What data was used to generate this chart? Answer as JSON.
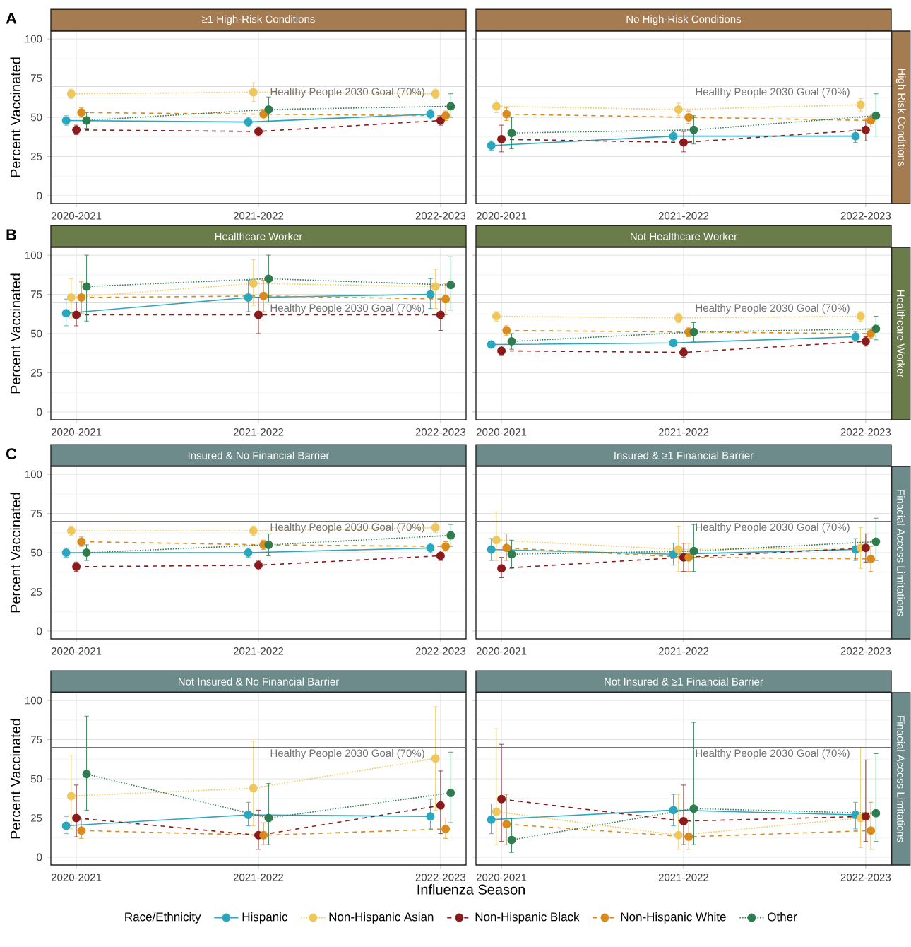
{
  "chart_data": [
    {
      "type": "line",
      "title": "≥1 High-Risk Conditions",
      "ylabel": "Percent Vaccinated",
      "categories": [
        "2020-2021",
        "2021-2022",
        "2022-2023"
      ],
      "ylim": [
        -5,
        105
      ],
      "yticks": [
        0,
        25,
        50,
        75,
        100
      ],
      "grid": true,
      "marker": "circle",
      "annotations": [
        "A"
      ],
      "ref_lines": [
        {
          "axis": "y",
          "value": 70,
          "label": "Healthy People 2030 Goal (70%)"
        }
      ],
      "series": [
        {
          "color": "#2aa7bf",
          "line_style": "solid",
          "values": [
            48,
            47,
            52
          ],
          "errors": [
            3,
            3,
            3
          ]
        },
        {
          "color": "#f0c75a",
          "line_style": "dotted",
          "values": [
            65,
            66,
            65
          ],
          "errors": [
            3,
            [
              60,
              72
            ],
            3
          ]
        },
        {
          "color": "#8b1a1a",
          "line_style": "dashed",
          "values": [
            42,
            41,
            48
          ],
          "errors": [
            3,
            3,
            3
          ]
        },
        {
          "color": "#d98b1e",
          "line_style": "dashed",
          "values": [
            53,
            52,
            51
          ],
          "errors": [
            3,
            3,
            3
          ]
        },
        {
          "color": "#2e7d4f",
          "line_style": "dotted",
          "values": [
            48,
            55,
            57
          ],
          "errors": [
            [
              43,
              53
            ],
            [
              47,
              63
            ],
            [
              50,
              65
            ]
          ]
        }
      ]
    },
    {
      "type": "line",
      "title": "No High-Risk Conditions",
      "categories": [
        "2020-2021",
        "2021-2022",
        "2022-2023"
      ],
      "ylim": [
        -5,
        105
      ],
      "yticks": [
        0,
        25,
        50,
        75,
        100
      ],
      "tick_labels": "x",
      "grid": true,
      "marker": "circle",
      "annotations": [
        "High Risk Conditions"
      ],
      "ref_lines": [
        {
          "axis": "y",
          "value": 70,
          "label": "Healthy People 2030 Goal (70%)"
        }
      ],
      "series": [
        {
          "color": "#2aa7bf",
          "line_style": "solid",
          "values": [
            32,
            38,
            38
          ],
          "errors": [
            3,
            3,
            4
          ]
        },
        {
          "color": "#f0c75a",
          "line_style": "dotted",
          "values": [
            57,
            55,
            58
          ],
          "errors": [
            4,
            4,
            4
          ]
        },
        {
          "color": "#8b1a1a",
          "line_style": "dashed",
          "values": [
            36,
            34,
            42
          ],
          "errors": [
            [
              28,
              45
            ],
            [
              28,
              41
            ],
            [
              35,
              49
            ]
          ]
        },
        {
          "color": "#d98b1e",
          "line_style": "dashed",
          "values": [
            52,
            50,
            48
          ],
          "errors": [
            4,
            4,
            4
          ]
        },
        {
          "color": "#2e7d4f",
          "line_style": "dotted",
          "values": [
            40,
            42,
            51
          ],
          "errors": [
            [
              30,
              50
            ],
            [
              33,
              51
            ],
            [
              38,
              65
            ]
          ]
        }
      ]
    },
    {
      "type": "line",
      "title": "Healthcare Worker",
      "ylabel": "Percent Vaccinated",
      "categories": [
        "2020-2021",
        "2021-2022",
        "2022-2023"
      ],
      "ylim": [
        -5,
        105
      ],
      "yticks": [
        0,
        25,
        50,
        75,
        100
      ],
      "grid": true,
      "marker": "circle",
      "annotations": [
        "B"
      ],
      "ref_lines": [
        {
          "axis": "y",
          "value": 70,
          "label": "Healthy People 2030 Goal (70%)"
        }
      ],
      "series": [
        {
          "color": "#2aa7bf",
          "line_style": "solid",
          "values": [
            63,
            73,
            75
          ],
          "errors": [
            [
              55,
              72
            ],
            [
              64,
              84
            ],
            [
              66,
              85
            ]
          ]
        },
        {
          "color": "#f0c75a",
          "line_style": "dotted",
          "values": [
            73,
            82,
            80
          ],
          "errors": [
            [
              60,
              85
            ],
            [
              68,
              97
            ],
            [
              66,
              91
            ]
          ]
        },
        {
          "color": "#8b1a1a",
          "line_style": "dashed",
          "values": [
            62,
            62,
            62
          ],
          "errors": [
            [
              55,
              70
            ],
            [
              50,
              73
            ],
            [
              52,
              72
            ]
          ]
        },
        {
          "color": "#d98b1e",
          "line_style": "dashed",
          "values": [
            73,
            74,
            72
          ],
          "errors": [
            [
              63,
              83
            ],
            [
              64,
              84
            ],
            [
              62,
              82
            ]
          ]
        },
        {
          "color": "#2e7d4f",
          "line_style": "dotted",
          "values": [
            80,
            85,
            81
          ],
          "errors": [
            [
              58,
              100
            ],
            [
              70,
              100
            ],
            [
              65,
              99
            ]
          ]
        }
      ]
    },
    {
      "type": "line",
      "title": "Not Healthcare Worker",
      "categories": [
        "2020-2021",
        "2021-2022",
        "2022-2023"
      ],
      "ylim": [
        -5,
        105
      ],
      "yticks": [
        0,
        25,
        50,
        75,
        100
      ],
      "tick_labels": "x",
      "grid": true,
      "marker": "circle",
      "annotations": [
        "Healthcare Worker"
      ],
      "ref_lines": [
        {
          "axis": "y",
          "value": 70,
          "label": "Healthy People 2030 Goal (70%)"
        }
      ],
      "series": [
        {
          "color": "#2aa7bf",
          "line_style": "solid",
          "values": [
            43,
            44,
            48
          ],
          "errors": [
            2,
            2,
            3
          ]
        },
        {
          "color": "#f0c75a",
          "line_style": "dotted",
          "values": [
            61,
            60,
            61
          ],
          "errors": [
            3,
            3,
            3
          ]
        },
        {
          "color": "#8b1a1a",
          "line_style": "dashed",
          "values": [
            39,
            38,
            45
          ],
          "errors": [
            3,
            3,
            3
          ]
        },
        {
          "color": "#d98b1e",
          "line_style": "dashed",
          "values": [
            52,
            51,
            50
          ],
          "errors": [
            3,
            3,
            3
          ]
        },
        {
          "color": "#2e7d4f",
          "line_style": "dotted",
          "values": [
            45,
            51,
            53
          ],
          "errors": [
            [
              40,
              50
            ],
            [
              45,
              57
            ],
            [
              46,
              61
            ]
          ]
        }
      ]
    },
    {
      "type": "line",
      "title": "Insured & No Financial Barrier",
      "ylabel": "Percent Vaccinated",
      "categories": [
        "2020-2021",
        "2021-2022",
        "2022-2023"
      ],
      "ylim": [
        -5,
        105
      ],
      "yticks": [
        0,
        25,
        50,
        75,
        100
      ],
      "grid": true,
      "marker": "circle",
      "annotations": [
        "C"
      ],
      "ref_lines": [
        {
          "axis": "y",
          "value": 70,
          "label": "Healthy People 2030 Goal (70%)"
        }
      ],
      "series": [
        {
          "color": "#2aa7bf",
          "line_style": "solid",
          "values": [
            50,
            50,
            53
          ],
          "errors": [
            3,
            3,
            3
          ]
        },
        {
          "color": "#f0c75a",
          "line_style": "dotted",
          "values": [
            64,
            64,
            66
          ],
          "errors": [
            3,
            3,
            3
          ]
        },
        {
          "color": "#8b1a1a",
          "line_style": "dashed",
          "values": [
            41,
            42,
            48
          ],
          "errors": [
            3,
            3,
            3
          ]
        },
        {
          "color": "#d98b1e",
          "line_style": "dashed",
          "values": [
            57,
            55,
            54
          ],
          "errors": [
            3,
            3,
            3
          ]
        },
        {
          "color": "#2e7d4f",
          "line_style": "dotted",
          "values": [
            50,
            55,
            61
          ],
          "errors": [
            [
              45,
              55
            ],
            [
              48,
              62
            ],
            [
              54,
              68
            ]
          ]
        }
      ]
    },
    {
      "type": "line",
      "title": "Insured & ≥1 Financial Barrier",
      "categories": [
        "2020-2021",
        "2021-2022",
        "2022-2023"
      ],
      "ylim": [
        -5,
        105
      ],
      "yticks": [
        0,
        25,
        50,
        75,
        100
      ],
      "tick_labels": "x",
      "grid": true,
      "marker": "circle",
      "annotations": [
        "Finacial Access Limitations"
      ],
      "ref_lines": [
        {
          "axis": "y",
          "value": 70,
          "label": "Healthy People 2030 Goal (70%)"
        }
      ],
      "series": [
        {
          "color": "#2aa7bf",
          "line_style": "solid",
          "values": [
            52,
            49,
            52
          ],
          "errors": [
            [
              45,
              59
            ],
            [
              42,
              56
            ],
            [
              45,
              59
            ]
          ]
        },
        {
          "color": "#f0c75a",
          "line_style": "dotted",
          "values": [
            58,
            52,
            53
          ],
          "errors": [
            [
              45,
              76
            ],
            [
              38,
              67
            ],
            [
              40,
              66
            ]
          ]
        },
        {
          "color": "#8b1a1a",
          "line_style": "dashed",
          "values": [
            40,
            47,
            53
          ],
          "errors": [
            [
              34,
              47
            ],
            [
              38,
              56
            ],
            [
              44,
              62
            ]
          ]
        },
        {
          "color": "#d98b1e",
          "line_style": "dashed",
          "values": [
            53,
            47,
            46
          ],
          "errors": [
            [
              45,
              62
            ],
            [
              38,
              56
            ],
            [
              38,
              54
            ]
          ]
        },
        {
          "color": "#2e7d4f",
          "line_style": "dotted",
          "values": [
            49,
            51,
            57
          ],
          "errors": [
            [
              40,
              58
            ],
            [
              38,
              68
            ],
            [
              45,
              72
            ]
          ]
        }
      ]
    },
    {
      "type": "line",
      "title": "Not Insured & No Financial Barrier",
      "ylabel": "Percent Vaccinated",
      "xlabel": "Influenza Season",
      "categories": [
        "2020-2021",
        "2021-2022",
        "2022-2023"
      ],
      "ylim": [
        -5,
        105
      ],
      "yticks": [
        0,
        25,
        50,
        75,
        100
      ],
      "grid": true,
      "marker": "circle",
      "ref_lines": [
        {
          "axis": "y",
          "value": 70,
          "label": "Healthy People 2030 Goal (70%)"
        }
      ],
      "series": [
        {
          "color": "#2aa7bf",
          "line_style": "solid",
          "values": [
            20,
            27,
            26
          ],
          "errors": [
            [
              15,
              26
            ],
            [
              20,
              35
            ],
            [
              18,
              37
            ]
          ]
        },
        {
          "color": "#f0c75a",
          "line_style": "dotted",
          "values": [
            39,
            44,
            63
          ],
          "errors": [
            [
              18,
              65
            ],
            [
              20,
              74
            ],
            [
              30,
              96
            ]
          ]
        },
        {
          "color": "#8b1a1a",
          "line_style": "dashed",
          "values": [
            25,
            14,
            33
          ],
          "errors": [
            [
              13,
              46
            ],
            [
              5,
              30
            ],
            [
              15,
              55
            ]
          ]
        },
        {
          "color": "#d98b1e",
          "line_style": "dashed",
          "values": [
            17,
            14,
            18
          ],
          "errors": [
            [
              12,
              25
            ],
            [
              8,
              22
            ],
            [
              12,
              25
            ]
          ]
        },
        {
          "color": "#2e7d4f",
          "line_style": "dotted",
          "values": [
            53,
            25,
            41
          ],
          "errors": [
            [
              30,
              90
            ],
            [
              8,
              47
            ],
            [
              22,
              67
            ]
          ]
        }
      ]
    },
    {
      "type": "line",
      "title": "Not Insured & ≥1 Financial Barrier",
      "categories": [
        "2020-2021",
        "2021-2022",
        "2022-2023"
      ],
      "ylim": [
        -5,
        105
      ],
      "yticks": [
        0,
        25,
        50,
        75,
        100
      ],
      "tick_labels": "x",
      "grid": true,
      "marker": "circle",
      "legend": "bottom",
      "legend_title": "Race/Ethnicity",
      "annotations": [
        "Finacial Access Limitations"
      ],
      "ref_lines": [
        {
          "axis": "y",
          "value": 70,
          "label": "Healthy People 2030 Goal (70%)"
        }
      ],
      "series": [
        {
          "name": "Hispanic",
          "color": "#2aa7bf",
          "line_style": "solid",
          "values": [
            24,
            30,
            27
          ],
          "errors": [
            [
              15,
              34
            ],
            [
              20,
              40
            ],
            [
              18,
              35
            ]
          ]
        },
        {
          "name": "Non-Hispanic Asian",
          "color": "#f0c75a",
          "line_style": "dotted",
          "values": [
            29,
            14,
            25
          ],
          "errors": [
            [
              8,
              82
            ],
            [
              5,
              40
            ],
            [
              6,
              70
            ]
          ]
        },
        {
          "name": "Non-Hispanic Black",
          "color": "#8b1a1a",
          "line_style": "dashed",
          "values": [
            37,
            23,
            26
          ],
          "errors": [
            [
              10,
              72
            ],
            [
              8,
              46
            ],
            [
              10,
              62
            ]
          ]
        },
        {
          "name": "Non-Hispanic White",
          "color": "#d98b1e",
          "line_style": "dashed",
          "values": [
            21,
            13,
            17
          ],
          "errors": [
            [
              8,
              40
            ],
            [
              5,
              25
            ],
            [
              5,
              35
            ]
          ]
        },
        {
          "name": "Other",
          "color": "#2e7d4f",
          "line_style": "dotted",
          "values": [
            11,
            31,
            28
          ],
          "errors": [
            [
              3,
              25
            ],
            [
              8,
              86
            ],
            [
              10,
              66
            ]
          ]
        }
      ]
    }
  ]
}
